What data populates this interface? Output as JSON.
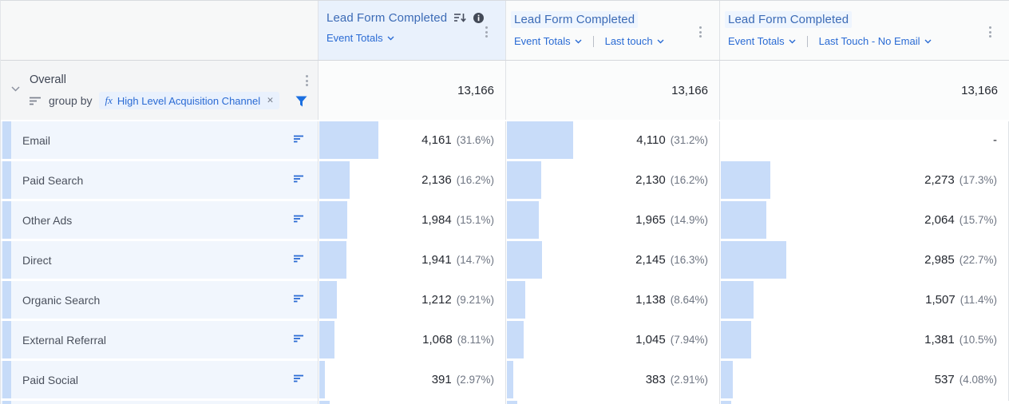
{
  "table": {
    "columns": [
      {
        "metric": "Lead Form Completed",
        "selectors": [
          "Event Totals"
        ]
      },
      {
        "metric": "Lead Form Completed",
        "selectors": [
          "Event Totals",
          "Last touch"
        ]
      },
      {
        "metric": "Lead Form Completed",
        "selectors": [
          "Event Totals",
          "Last Touch - No Email"
        ]
      }
    ],
    "overall": {
      "label": "Overall",
      "group_by_label": "group by",
      "chip_fx": "fx",
      "group_by_chip": "High Level Acquisition Channel",
      "chip_close": "✕",
      "values": [
        "13,166",
        "13,166",
        "13,166"
      ]
    },
    "rows": [
      {
        "label": "Email",
        "cells": [
          {
            "value": "4,161",
            "pct_label": "(31.6%)",
            "pct": 31.6
          },
          {
            "value": "4,110",
            "pct_label": "(31.2%)",
            "pct": 31.2
          },
          {
            "value": "-",
            "pct_label": "",
            "pct": 0
          }
        ]
      },
      {
        "label": "Paid Search",
        "cells": [
          {
            "value": "2,136",
            "pct_label": "(16.2%)",
            "pct": 16.2
          },
          {
            "value": "2,130",
            "pct_label": "(16.2%)",
            "pct": 16.2
          },
          {
            "value": "2,273",
            "pct_label": "(17.3%)",
            "pct": 17.3
          }
        ]
      },
      {
        "label": "Other Ads",
        "cells": [
          {
            "value": "1,984",
            "pct_label": "(15.1%)",
            "pct": 15.1
          },
          {
            "value": "1,965",
            "pct_label": "(14.9%)",
            "pct": 14.9
          },
          {
            "value": "2,064",
            "pct_label": "(15.7%)",
            "pct": 15.7
          }
        ]
      },
      {
        "label": "Direct",
        "cells": [
          {
            "value": "1,941",
            "pct_label": "(14.7%)",
            "pct": 14.7
          },
          {
            "value": "2,145",
            "pct_label": "(16.3%)",
            "pct": 16.3
          },
          {
            "value": "2,985",
            "pct_label": "(22.7%)",
            "pct": 22.7
          }
        ]
      },
      {
        "label": "Organic Search",
        "cells": [
          {
            "value": "1,212",
            "pct_label": "(9.21%)",
            "pct": 9.21
          },
          {
            "value": "1,138",
            "pct_label": "(8.64%)",
            "pct": 8.64
          },
          {
            "value": "1,507",
            "pct_label": "(11.4%)",
            "pct": 11.4
          }
        ]
      },
      {
        "label": "External Referral",
        "cells": [
          {
            "value": "1,068",
            "pct_label": "(8.11%)",
            "pct": 8.11
          },
          {
            "value": "1,045",
            "pct_label": "(7.94%)",
            "pct": 7.94
          },
          {
            "value": "1,381",
            "pct_label": "(10.5%)",
            "pct": 10.5
          }
        ]
      },
      {
        "label": "Paid Social",
        "cells": [
          {
            "value": "391",
            "pct_label": "(2.97%)",
            "pct": 2.97
          },
          {
            "value": "383",
            "pct_label": "(2.91%)",
            "pct": 2.91
          },
          {
            "value": "537",
            "pct_label": "(4.08%)",
            "pct": 4.08
          }
        ]
      }
    ],
    "colors": {
      "bar": "#c8dcf9",
      "selected_header_bg": "#e9f1fc",
      "link_blue": "#2a6bd4",
      "metric_blue": "#3c6bb6"
    }
  }
}
